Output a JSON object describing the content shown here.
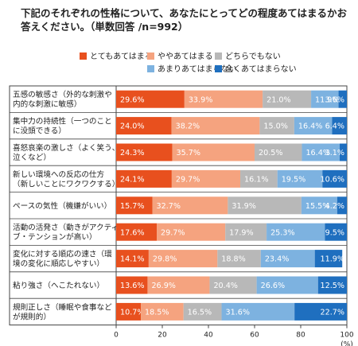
{
  "chart_data": {
    "type": "bar",
    "stacked": true,
    "orientation": "horizontal",
    "title": "下記のそれぞれの性格について、あなたにとってどの程度あてはまるかお答えください。（単数回答 /n=992）",
    "xlabel": "(%)",
    "ylabel": "",
    "xlim": [
      0,
      100
    ],
    "xticks": [
      "0",
      "20",
      "40",
      "60",
      "80",
      "100"
    ],
    "legend_position": "top",
    "categories": [
      [
        "五感の敏感さ（外的な刺激や",
        "内的な刺激に敏感）"
      ],
      [
        "集中力の持続性（一つのこと",
        "に没頭できる）"
      ],
      [
        "喜怒哀楽の激しさ（よく笑う、",
        "泣くなど）"
      ],
      [
        "新しい環境への反応の仕方",
        "（新しいことにワクワクする）"
      ],
      [
        "ペースの気性（機嫌がいい）"
      ],
      [
        "活動の活発さ（動きがアクティ",
        "ブ・テンションが高い）"
      ],
      [
        "変化に対する順応の速さ（環",
        "境の変化に順応しやすい）"
      ],
      [
        "粘り強さ（へこたれない）"
      ],
      [
        "規則正しさ（睡眠や食事など",
        "が規則的）"
      ]
    ],
    "series": [
      {
        "name": "とてもあてはまる",
        "color": "#e8501e",
        "values": [
          29.6,
          24.0,
          24.3,
          24.1,
          15.7,
          17.6,
          14.1,
          13.6,
          10.7
        ],
        "labels": [
          "29.6%",
          "24.0%",
          "24.3%",
          "24.1%",
          "15.7%",
          "17.6%",
          "14.1%",
          "13.6%",
          "10.7%"
        ]
      },
      {
        "name": "ややあてはまる",
        "color": "#f5a37f",
        "values": [
          33.9,
          38.2,
          35.7,
          29.7,
          32.7,
          29.7,
          29.8,
          26.9,
          18.5
        ],
        "labels": [
          "33.9%",
          "38.2%",
          "35.7%",
          "29.7%",
          "32.7%",
          "29.7%",
          "29.8%",
          "26.9%",
          "18.5%"
        ]
      },
      {
        "name": "どちらでもない",
        "color": "#b8b8b8",
        "values": [
          21.0,
          15.0,
          20.5,
          16.1,
          31.9,
          17.9,
          18.8,
          20.4,
          16.5
        ],
        "labels": [
          "21.0%",
          "15.0%",
          "20.5%",
          "16.1%",
          "31.9%",
          "17.9%",
          "18.8%",
          "20.4%",
          "16.5%"
        ]
      },
      {
        "name": "あまりあてはまらない",
        "color": "#7db2e0",
        "values": [
          11.9,
          16.4,
          16.4,
          19.5,
          15.5,
          25.3,
          23.4,
          26.6,
          31.6
        ],
        "labels": [
          "11.9%",
          "16.4%",
          "16.4%",
          "19.5%",
          "15.5%",
          "25.3%",
          "23.4%",
          "26.6%",
          "31.6%"
        ]
      },
      {
        "name": "全くあてはまらない",
        "color": "#1f6fbf",
        "values": [
          3.6,
          6.4,
          3.1,
          10.6,
          4.2,
          9.5,
          11.9,
          12.5,
          22.7
        ],
        "labels": [
          "3.6%",
          "6.4%",
          "3.1%",
          "10.6%",
          "4.2%",
          "9.5%",
          "11.9%",
          "12.5%",
          "22.7%"
        ]
      }
    ]
  }
}
